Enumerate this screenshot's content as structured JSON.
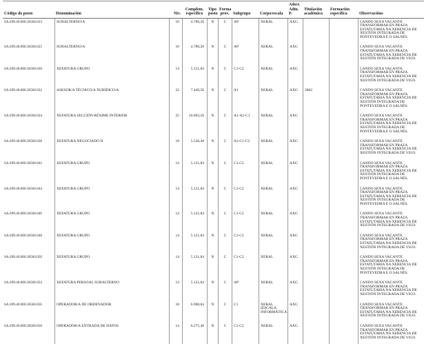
{
  "table": {
    "headers": {
      "codigo": "Código do posto",
      "denominacion": "Denominación",
      "niv_top": "",
      "niv": "Niv.",
      "complem_top": "Complem.",
      "complem": "específico",
      "tipo_top": "Tipo",
      "tipo": "posto",
      "forma_top": "Forma",
      "forma": "prov.",
      "subgrupo": "Subgrupo",
      "corpo": "Corpo/escala",
      "adscr_top": "Adscr.",
      "adscr": "Adm. P.",
      "titulacion_top": "Titulación",
      "titulacion": "académica",
      "formacion_top": "Formación",
      "formacion": "específica",
      "observacions": "Observacións"
    },
    "observacion_pontevedra": "CANDO SEXA VACANTE TRANSFORMAR EN PRAZA ESTATUTARIA NA XERENCIA DE XESTIÓN INTEGRADA DE PONTEVEDRA E O SALNÉS.",
    "observacion_vigo": "CANDO SEXA VACANTE TRANSFORMAR EN PRAZA ESTATUTARIA NA XERENCIA DE XESTIÓN INTEGRADA DE VIGO.",
    "rows": [
      {
        "codigo": "SA.S99.40.000.36560.023",
        "denominacion": "SUBALTERNO/A",
        "niv": "10",
        "complem": "4.786,20",
        "tipo": "N",
        "forma": "C",
        "subgrupo": "AP",
        "corpo": "XERAL",
        "adscr": "AXG",
        "titulacion": "",
        "formacion": "",
        "observacions": "CANDO SEXA VACANTE TRANSFORMAR EN PRAZA ESTATUTARIA NA XERENCIA DE XESTIÓN INTEGRADA DE PONTEVEDRA E O SALNÉS."
      },
      {
        "codigo": "SA.S99.40.000.36560.025",
        "denominacion": "SUBALTERNO/A",
        "niv": "10",
        "complem": "4.786,20",
        "tipo": "N",
        "forma": "C",
        "subgrupo": "AP",
        "corpo": "XERAL",
        "adscr": "AXG",
        "titulacion": "",
        "formacion": "",
        "observacions": "CANDO SEXA VACANTE TRANSFORMAR EN PRAZA ESTATUTARIA NA XERENCIA DE XESTIÓN INTEGRADA DE VIGO."
      },
      {
        "codigo": "SA.S99.40.000.36560.030",
        "denominacion": "XEFATURA GRUPO",
        "niv": "14",
        "complem": "5.121,84",
        "tipo": "N",
        "forma": "C",
        "subgrupo": "C1-C2",
        "corpo": "XERAL",
        "adscr": "AXG",
        "titulacion": "",
        "formacion": "",
        "observacions": "CANDO SEXA VACANTE TRANSFORMAR EN PRAZA ESTATUTARIA NA XERENCIA DE XESTIÓN INTEGRADA DE VIGO."
      },
      {
        "codigo": "SA.S99.40.000.36560.032",
        "denominacion": "ASESOR/A TÉCNICO/A XURÍDICO/A",
        "niv": "22",
        "complem": "7.449,56",
        "tipo": "N",
        "forma": "C",
        "subgrupo": "A1",
        "corpo": "XERAL",
        "adscr": "AXG",
        "titulacion": "3062",
        "formacion": "",
        "observacions": "CANDO SEXA VACANTE TRANSFORMAR EN PRAZA ESTATUTARIA NA XERENCIA DE XESTIÓN INTEGRADA DE PONTEVEDRA E O SALNÉS."
      },
      {
        "codigo": "SA.S99.40.000.36560.034",
        "denominacion": "XEFATURA SECCIÓN RÉXIME INTERIOR",
        "niv": "25",
        "complem": "10.093,56",
        "tipo": "N",
        "forma": "C",
        "subgrupo": "A1-A2-C1",
        "corpo": "XERAL",
        "adscr": "AXG",
        "titulacion": "",
        "formacion": "",
        "observacions": "CANDO SEXA VACANTE TRANSFORMAR EN PRAZA ESTATUTARIA NA XERENCIA DE XESTIÓN INTEGRADA DE PONTEVEDRA E O SALNÉS."
      },
      {
        "codigo": "SA.S99.40.000.36560.038",
        "denominacion": "XEFATURA NEGOCIADO II",
        "niv": "18",
        "complem": "5.526,48",
        "tipo": "N",
        "forma": "C",
        "subgrupo": "A2-C1-C2",
        "corpo": "XERAL",
        "adscr": "AXG",
        "titulacion": "",
        "formacion": "",
        "observacions": "CANDO SEXA VACANTE TRANSFORMAR EN PRAZA ESTATUTARIA NA XERENCIA DE XESTIÓN INTEGRADA DE VIGO."
      },
      {
        "codigo": "SA.S99.40.000.36560.042",
        "denominacion": "XEFATURA GRUPO",
        "niv": "14",
        "complem": "5.121,84",
        "tipo": "N",
        "forma": "C",
        "subgrupo": "C1-C2",
        "corpo": "XERAL",
        "adscr": "AXG",
        "titulacion": "",
        "formacion": "",
        "observacions": "CANDO SEXA VACANTE TRANSFORMAR EN PRAZA ESTATUTARIA NA XERENCIA DE XESTIÓN INTEGRADA DE PONTEVEDRA E O SALNÉS."
      },
      {
        "codigo": "SA.S99.40.000.36560.044",
        "denominacion": "XEFATURA GRUPO",
        "niv": "14",
        "complem": "5.121,84",
        "tipo": "N",
        "forma": "C",
        "subgrupo": "C1-C2",
        "corpo": "XERAL",
        "adscr": "AXG",
        "titulacion": "",
        "formacion": "",
        "observacions": "CANDO SEXA VACANTE TRANSFORMAR EN PRAZA ESTATUTARIA NA XERENCIA DE XESTIÓN INTEGRADA DE PONTEVEDRA E O SALNÉS."
      },
      {
        "codigo": "SA.S99.40.000.36560.046",
        "denominacion": "XEFATURA GRUPO",
        "niv": "14",
        "complem": "5.121,84",
        "tipo": "N",
        "forma": "C",
        "subgrupo": "C1-C2",
        "corpo": "XERAL",
        "adscr": "AXG",
        "titulacion": "",
        "formacion": "",
        "observacions": "CANDO SEXA VACANTE TRANSFORMAR EN PRAZA ESTATUTARIA NA XERENCIA DE XESTIÓN INTEGRADA DE VIGO."
      },
      {
        "codigo": "SA.S99.40.000.36560.048",
        "denominacion": "XEFATURA GRUPO",
        "niv": "14",
        "complem": "5.121,84",
        "tipo": "N",
        "forma": "C",
        "subgrupo": "C1-C2",
        "corpo": "XERAL",
        "adscr": "AXG",
        "titulacion": "",
        "formacion": "",
        "observacions": "CANDO SEXA VACANTE TRANSFORMAR EN PRAZA ESTATUTARIA NA XERENCIA DE XESTIÓN INTEGRADA DE VIGO."
      },
      {
        "codigo": "SA.S99.40.000.36560.050",
        "denominacion": "XEFATURA GRUPO",
        "niv": "14",
        "complem": "5.121,84",
        "tipo": "N",
        "forma": "C",
        "subgrupo": "C1-C2",
        "corpo": "XERAL",
        "adscr": "AXG",
        "titulacion": "",
        "formacion": "",
        "observacions": "CANDO SEXA VACANTE TRANSFORMAR EN PRAZA ESTATUTARIA NA XERENCIA DE XESTIÓN INTEGRADA DE PONTEVEDRA E O SALNÉS."
      },
      {
        "codigo": "SA.S99.40.000.36560.054",
        "denominacion": "XEFATURA PERSOAL SUBALTERNO",
        "niv": "14",
        "complem": "5.121,84",
        "tipo": "N",
        "forma": "C",
        "subgrupo": "AP",
        "corpo": "XERAL",
        "adscr": "AXG",
        "titulacion": "",
        "formacion": "",
        "observacions": "CANDO SEXA VACANTE TRANSFORMAR EN PRAZA ESTATUTARIA NA XERENCIA DE XESTIÓN INTEGRADA DE VIGO."
      },
      {
        "codigo": "SA.S99.40.000.36560.056",
        "denominacion": "OPERADOR/A DE ORDENADOR",
        "niv": "18",
        "complem": "6.908,64",
        "tipo": "N",
        "forma": "C",
        "subgrupo": "C1",
        "corpo": "XERAL (ESCALA INFORMÁTICA)",
        "adscr": "AXG",
        "titulacion": "",
        "formacion": "",
        "observacions": "CANDO SEXA VACANTE TRANSFORMAR EN PRAZA ESTATUTARIA NA XERENCIA DE XESTIÓN INTEGRADA DE VIGO."
      },
      {
        "codigo": "SA.S99.40.000.36560.058",
        "denominacion": "OPERADOR/A ENTRADA DE DATOS",
        "niv": "14",
        "complem": "6.275,40",
        "tipo": "N",
        "forma": "C",
        "subgrupo": "C1-C2",
        "corpo": "XERAL",
        "adscr": "AXG",
        "titulacion": "",
        "formacion": "",
        "observacions": "CANDO SEXA VACANTE TRANSFORMAR EN PRAZA ESTATUTARIA NA XERENCIA DE XESTIÓN INTEGRADA DE VIGO."
      }
    ]
  }
}
